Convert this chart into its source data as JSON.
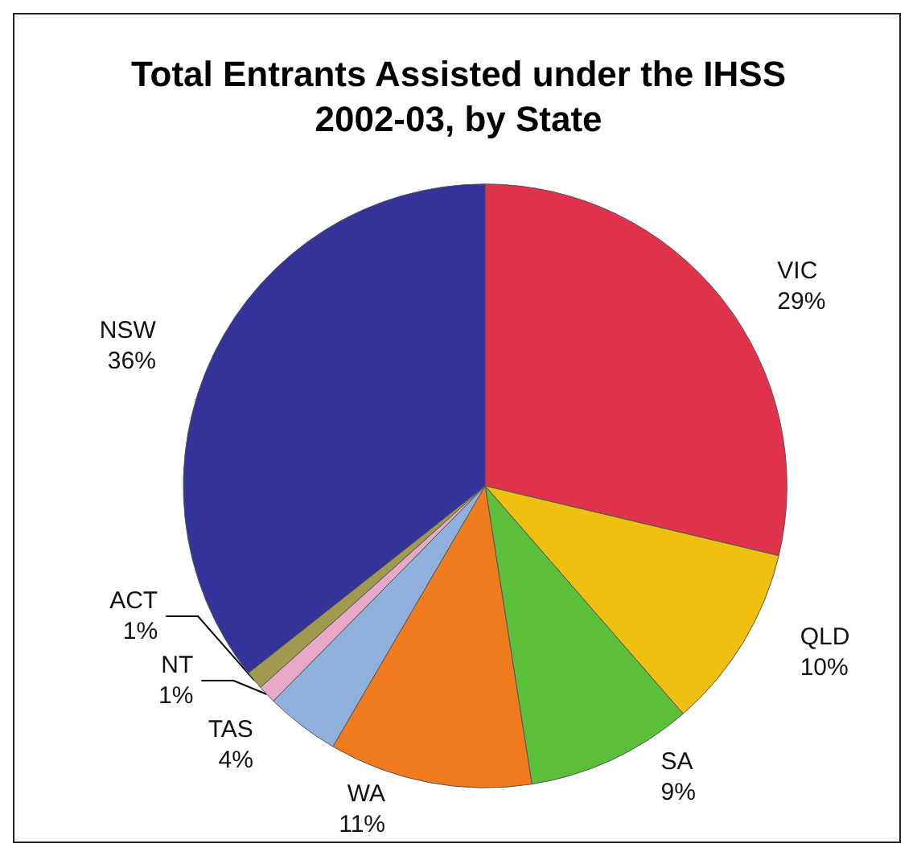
{
  "chart_data": {
    "type": "pie",
    "title": "Total Entrants Assisted under the IHSS\n2002-03, by State",
    "categories": [
      "VIC",
      "QLD",
      "SA",
      "WA",
      "TAS",
      "NT",
      "ACT",
      "NSW"
    ],
    "values": [
      29,
      10,
      9,
      11,
      4,
      1,
      1,
      36
    ],
    "value_labels": [
      "29%",
      "10%",
      "9%",
      "11%",
      "4%",
      "1%",
      "1%",
      "36%"
    ],
    "colors": [
      "#e0324b",
      "#f0c010",
      "#5cbf3a",
      "#f07a1e",
      "#8fb0dc",
      "#e8a8c8",
      "#a09a50",
      "#333399"
    ],
    "legend": false
  }
}
